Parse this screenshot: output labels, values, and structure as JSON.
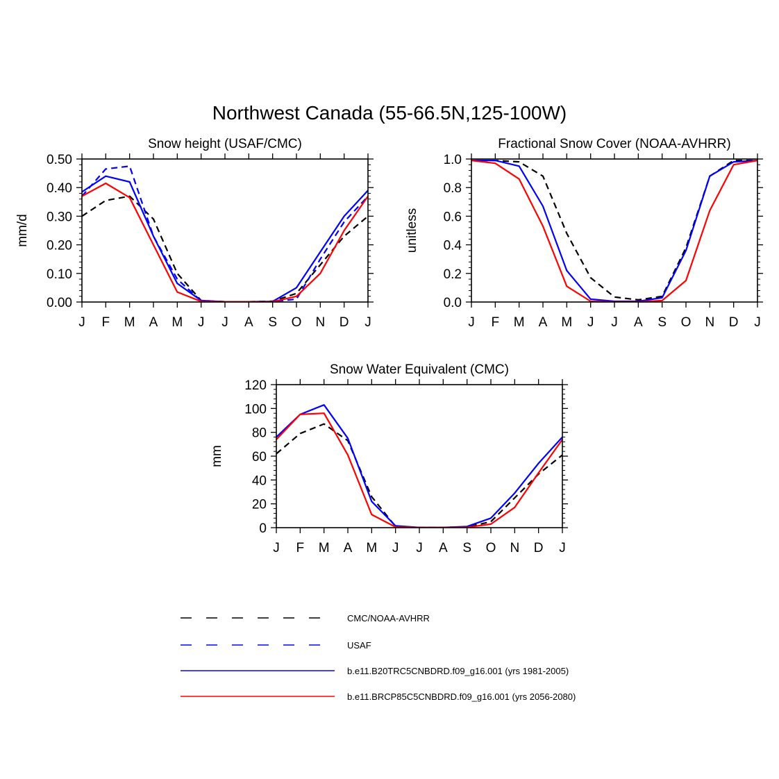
{
  "figure": {
    "title": "Northwest Canada (55-66.5N,125-100W)"
  },
  "legend": [
    {
      "label": "CMC/NOAA-AVHRR",
      "color": "#000000",
      "dash": "dashed"
    },
    {
      "label": "USAF",
      "color": "#0000ff",
      "dash": "dashed"
    },
    {
      "label": "b.e11.B20TRC5CNBDRD.f09_g16.001 (yrs 1981-2005)",
      "color": "#0000ff",
      "dash": "solid"
    },
    {
      "label": "b.e11.BRCP85C5CNBDRD.f09_g16.001 (yrs 2056-2080)",
      "color": "#ff0000",
      "dash": "solid"
    }
  ],
  "chart_data": [
    {
      "type": "line",
      "title": "Snow height (USAF/CMC)",
      "xlabel": "",
      "ylabel": "mm/d",
      "categories": [
        "J",
        "F",
        "M",
        "A",
        "M",
        "J",
        "J",
        "A",
        "S",
        "O",
        "N",
        "D",
        "J"
      ],
      "ylim": [
        0,
        0.5
      ],
      "yticks": [
        "0.00",
        "0.10",
        "0.20",
        "0.30",
        "0.40",
        "0.50"
      ],
      "series": [
        {
          "name": "CMC/NOAA-AVHRR",
          "color": "#000000",
          "dash": "dashed",
          "values": [
            0.3,
            0.355,
            0.37,
            0.29,
            0.1,
            0.005,
            0.001,
            0.001,
            0.003,
            0.03,
            0.13,
            0.23,
            0.3
          ]
        },
        {
          "name": "USAF",
          "color": "#0000ff",
          "dash": "dashed",
          "values": [
            0.37,
            0.465,
            0.475,
            0.23,
            0.08,
            0.004,
            0.001,
            0.001,
            0.002,
            0.01,
            0.15,
            0.28,
            0.37
          ]
        },
        {
          "name": "b.e11.B20TRC5CNBDRD.f09_g16.001 (yrs 1981-2005)",
          "color": "#0000ff",
          "dash": "solid",
          "values": [
            0.385,
            0.44,
            0.42,
            0.23,
            0.065,
            0.005,
            0.001,
            0.001,
            0.002,
            0.05,
            0.175,
            0.3,
            0.39
          ]
        },
        {
          "name": "b.e11.BRCP85C5CNBDRD.f09_g16.001 (yrs 2056-2080)",
          "color": "#ff0000",
          "dash": "solid",
          "values": [
            0.37,
            0.415,
            0.365,
            0.2,
            0.035,
            0.002,
            0.001,
            0.001,
            0.001,
            0.02,
            0.1,
            0.25,
            0.37
          ]
        }
      ]
    },
    {
      "type": "line",
      "title": "Fractional Snow Cover (NOAA-AVHRR)",
      "xlabel": "",
      "ylabel": "unitless",
      "categories": [
        "J",
        "F",
        "M",
        "A",
        "M",
        "J",
        "J",
        "A",
        "S",
        "O",
        "N",
        "D",
        "J"
      ],
      "ylim": [
        0,
        1.0
      ],
      "yticks": [
        "0.0",
        "0.2",
        "0.4",
        "0.6",
        "0.8",
        "1.0"
      ],
      "series": [
        {
          "name": "CMC/NOAA-AVHRR",
          "color": "#000000",
          "dash": "dashed",
          "values": [
            0.99,
            0.99,
            0.98,
            0.88,
            0.48,
            0.17,
            0.035,
            0.015,
            0.04,
            0.38,
            0.88,
            0.99,
            0.99
          ]
        },
        {
          "name": "b.e11.B20TRC5CNBDRD.f09_g16.001 (yrs 1981-2005)",
          "color": "#0000ff",
          "dash": "solid",
          "values": [
            0.99,
            0.99,
            0.95,
            0.67,
            0.22,
            0.02,
            0.005,
            0.005,
            0.03,
            0.36,
            0.88,
            0.98,
            0.99
          ]
        },
        {
          "name": "b.e11.BRCP85C5CNBDRD.f09_g16.001 (yrs 2056-2080)",
          "color": "#ff0000",
          "dash": "solid",
          "values": [
            0.99,
            0.97,
            0.86,
            0.53,
            0.11,
            0.005,
            0.001,
            0.001,
            0.01,
            0.15,
            0.64,
            0.96,
            0.99
          ]
        }
      ]
    },
    {
      "type": "line",
      "title": "Snow Water Equivalent (CMC)",
      "xlabel": "",
      "ylabel": "mm",
      "categories": [
        "J",
        "F",
        "M",
        "A",
        "M",
        "J",
        "J",
        "A",
        "S",
        "O",
        "N",
        "D",
        "J"
      ],
      "ylim": [
        0,
        120
      ],
      "yticks": [
        "0",
        "20",
        "40",
        "60",
        "80",
        "100",
        "120"
      ],
      "series": [
        {
          "name": "CMC/NOAA-AVHRR",
          "color": "#000000",
          "dash": "dashed",
          "values": [
            62,
            79,
            87,
            73,
            26,
            1,
            0.2,
            0.2,
            0.5,
            5,
            25,
            45,
            61
          ]
        },
        {
          "name": "b.e11.B20TRC5CNBDRD.f09_g16.001 (yrs 1981-2005)",
          "color": "#0000ff",
          "dash": "solid",
          "values": [
            76,
            95,
            103,
            75,
            22,
            1.5,
            0.2,
            0.2,
            1,
            8,
            29,
            54,
            76
          ]
        },
        {
          "name": "b.e11.BRCP85C5CNBDRD.f09_g16.001 (yrs 2056-2080)",
          "color": "#ff0000",
          "dash": "solid",
          "values": [
            74,
            95,
            96,
            61,
            11,
            0.5,
            0.1,
            0.1,
            0.3,
            3,
            17,
            46,
            74
          ]
        }
      ]
    }
  ]
}
